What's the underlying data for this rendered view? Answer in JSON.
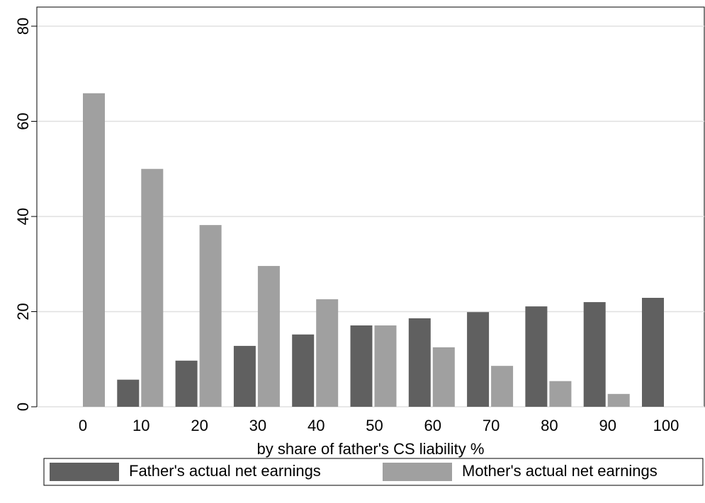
{
  "chart_data": {
    "type": "bar",
    "xlabel": "by share of father's CS liability %",
    "categories": [
      "0",
      "10",
      "20",
      "30",
      "40",
      "50",
      "60",
      "70",
      "80",
      "90",
      "100"
    ],
    "series": [
      {
        "name": "Father's actual net earnings",
        "color": "#606060",
        "values": [
          0,
          5.7,
          9.7,
          12.8,
          15.2,
          17.1,
          18.6,
          19.9,
          21.1,
          22.0,
          22.9
        ]
      },
      {
        "name": "Mother's actual net earnings",
        "color": "#a0a0a0",
        "values": [
          65.9,
          50.0,
          38.2,
          29.6,
          22.6,
          17.1,
          12.5,
          8.6,
          5.4,
          2.7,
          0
        ]
      }
    ],
    "ylim": [
      0,
      80
    ],
    "yticks": [
      0,
      20,
      40,
      60,
      80
    ],
    "grid": true,
    "legend": "bottom"
  }
}
